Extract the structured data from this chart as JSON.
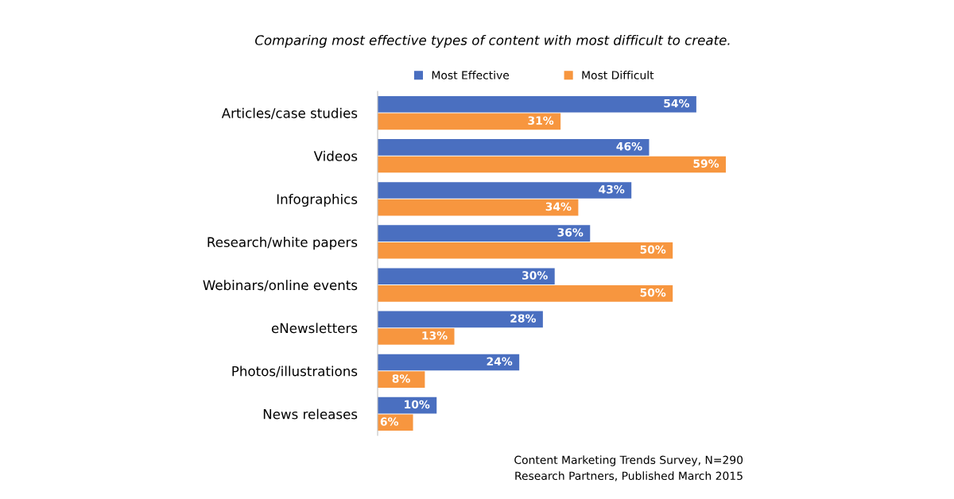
{
  "chart_data": {
    "type": "bar",
    "orientation": "horizontal",
    "title": "Comparing most effective types of content with most difficult to create.",
    "categories": [
      "Articles/case studies",
      "Videos",
      "Infographics",
      "Research/white papers",
      "Webinars/online events",
      "eNewsletters",
      "Photos/illustrations",
      "News releases"
    ],
    "series": [
      {
        "name": "Most Effective",
        "color": "#4a6fc0",
        "values": [
          54,
          46,
          43,
          36,
          30,
          28,
          24,
          10
        ],
        "value_labels": [
          "54%",
          "46%",
          "43%",
          "36%",
          "30%",
          "28%",
          "24%",
          "10%"
        ]
      },
      {
        "name": "Most Difficult",
        "color": "#f7963f",
        "values": [
          31,
          59,
          34,
          50,
          50,
          13,
          8,
          6
        ],
        "value_labels": [
          "31%",
          "59%",
          "34%",
          "50%",
          "50%",
          "13%",
          "8%",
          "6%"
        ]
      }
    ],
    "tick_labels": "y",
    "grid": false,
    "legend": "top",
    "annotations": [
      "Content Marketing Trends Survey, N=290",
      "Research Partners, Published March 2015"
    ]
  }
}
